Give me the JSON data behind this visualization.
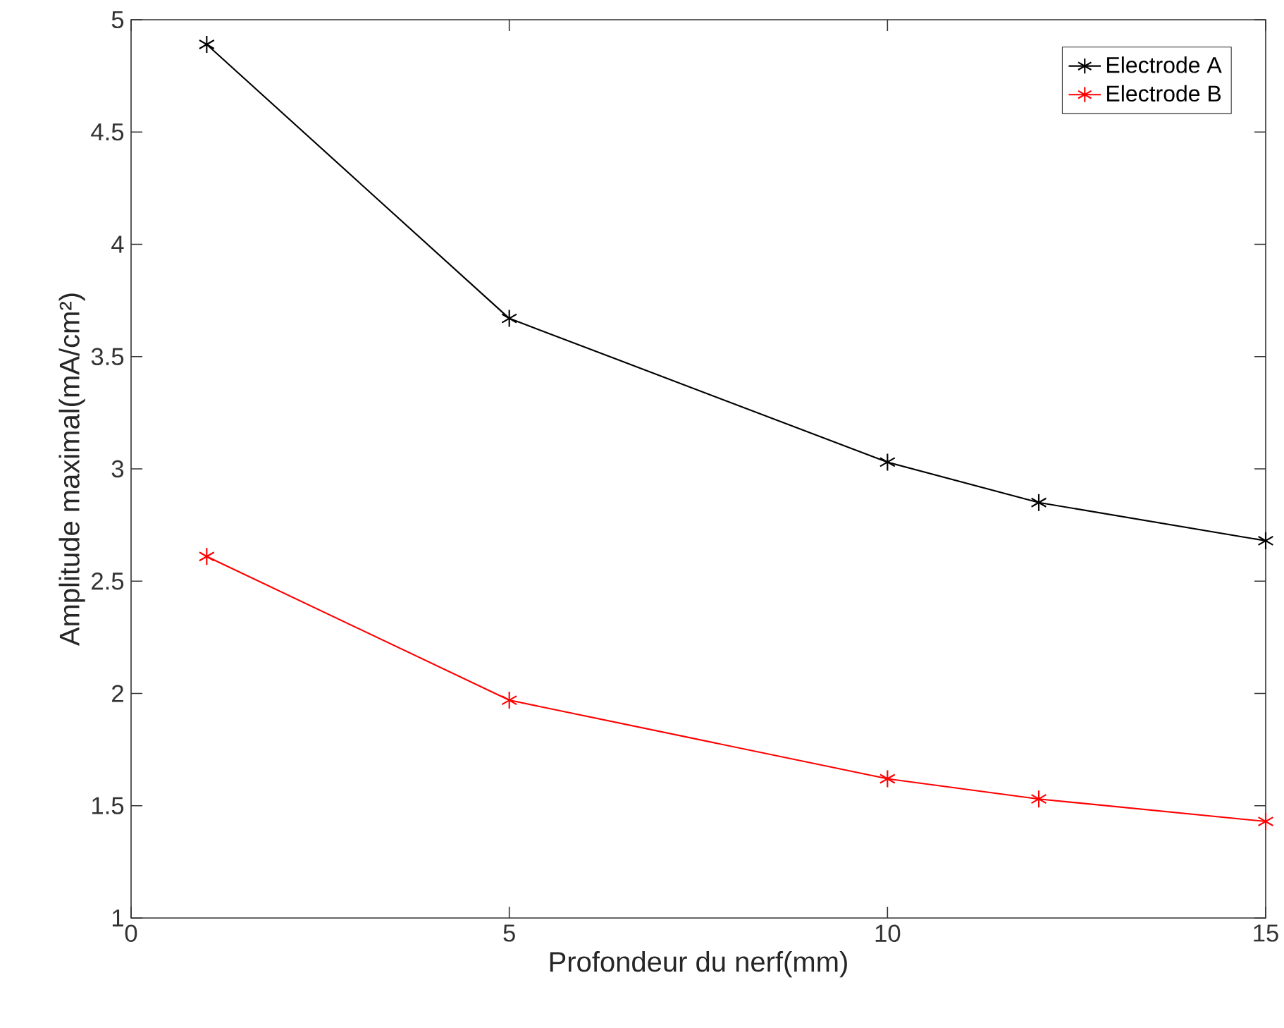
{
  "chart_data": {
    "type": "line",
    "xlabel": "Profondeur du nerf(mm)",
    "ylabel": "Amplitude maximal(mA/cm²)",
    "x": [
      1,
      5,
      10,
      12,
      15
    ],
    "series": [
      {
        "name": "Electrode A",
        "color": "#000000",
        "values": [
          4.89,
          3.67,
          3.03,
          2.85,
          2.68
        ]
      },
      {
        "name": "Electrode B",
        "color": "#ff0000",
        "values": [
          2.61,
          1.97,
          1.62,
          1.53,
          1.43
        ]
      }
    ],
    "xlim": [
      0,
      15
    ],
    "ylim": [
      1,
      5
    ],
    "xticks": [
      0,
      5,
      10,
      15
    ],
    "yticks": [
      1,
      1.5,
      2,
      2.5,
      3,
      3.5,
      4,
      4.5,
      5
    ],
    "legend": "top right",
    "marker": "cross",
    "line_style": "solid",
    "grid": false
  }
}
